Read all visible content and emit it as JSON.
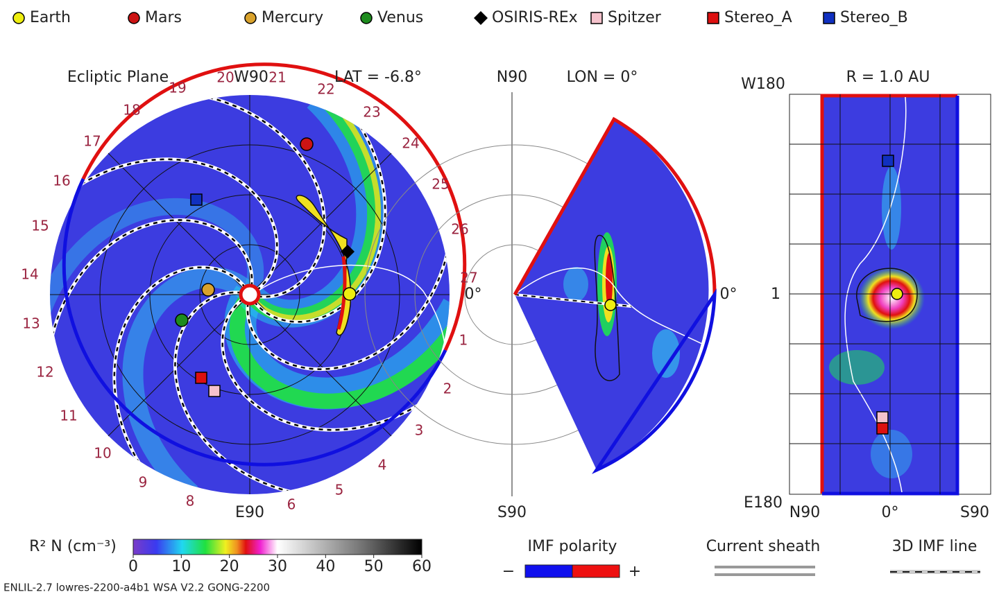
{
  "legend": [
    {
      "label": "Earth",
      "color": "#eeee10",
      "shape": "circle"
    },
    {
      "label": "Mars",
      "color": "#cc1414",
      "shape": "circle"
    },
    {
      "label": "Mercury",
      "color": "#d9a22c",
      "shape": "circle"
    },
    {
      "label": "Venus",
      "color": "#1e8c1e",
      "shape": "circle"
    },
    {
      "label": "OSIRIS-REx",
      "color": "#000000",
      "shape": "diamond"
    },
    {
      "label": "Spitzer",
      "color": "#f5c2cc",
      "shape": "square"
    },
    {
      "label": "Stereo_A",
      "color": "#dd1010",
      "shape": "square"
    },
    {
      "label": "Stereo_B",
      "color": "#1030c0",
      "shape": "square"
    }
  ],
  "ecliptic": {
    "title": "Ecliptic Plane",
    "top_label": "W90",
    "bottom_label": "E90",
    "lat_label": "LAT = -6.8°",
    "zero_label": "0°",
    "clock": [
      1,
      2,
      3,
      4,
      5,
      6,
      8,
      9,
      10,
      11,
      12,
      13,
      14,
      15,
      16,
      17,
      18,
      19,
      20,
      21,
      22,
      23,
      24,
      25,
      26,
      27
    ]
  },
  "meridional": {
    "top_label": "N90",
    "lon_label": "LON = 0°",
    "bottom_label": "S90",
    "zero_label": "0°"
  },
  "map": {
    "radius_label": "R = 1.0 AU",
    "top_label": "W180",
    "bottom_label": "E180",
    "center_label": "1",
    "x_labels": [
      "N90",
      "0°",
      "S90"
    ]
  },
  "colorbar": {
    "label": "R² N (cm⁻³)",
    "ticks": [
      0,
      10,
      20,
      30,
      40,
      50,
      60
    ]
  },
  "imf": {
    "title": "IMF polarity",
    "minus": "−",
    "plus": "+",
    "colors": [
      "#1010ee",
      "#ee1010"
    ]
  },
  "current_sheath": "Current sheath",
  "imf_line": "3D IMF line",
  "footer": "ENLIL-2.7 lowres-2200-a4b1 WSA V2.2 GONG-2200"
}
